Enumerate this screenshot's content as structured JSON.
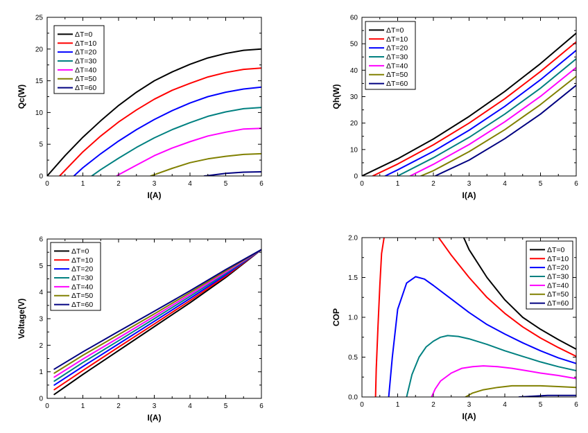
{
  "chart_data": [
    {
      "type": "line",
      "id": "qc",
      "xlabel": "I(A)",
      "ylabel": "Qc(W)",
      "xlim": [
        0,
        6
      ],
      "ylim": [
        0,
        25
      ],
      "xticks": [
        0,
        1,
        2,
        3,
        4,
        5,
        6
      ],
      "yticks": [
        0,
        5,
        10,
        15,
        20,
        25
      ],
      "legend_position": "top-left",
      "grid": false,
      "series": [
        {
          "name": "ΔT=0",
          "color": "#000000",
          "x": [
            0.0,
            0.5,
            1.0,
            1.5,
            2.0,
            2.5,
            3.0,
            3.5,
            4.0,
            4.5,
            5.0,
            5.5,
            6.0
          ],
          "y": [
            0.0,
            3.2,
            6.1,
            8.7,
            11.1,
            13.2,
            15.0,
            16.4,
            17.6,
            18.6,
            19.3,
            19.8,
            20.0
          ]
        },
        {
          "name": "ΔT=10",
          "color": "#ff0000",
          "x": [
            0.35,
            1.0,
            1.5,
            2.0,
            2.5,
            3.0,
            3.5,
            4.0,
            4.5,
            5.0,
            5.5,
            6.0
          ],
          "y": [
            0.0,
            3.8,
            6.3,
            8.5,
            10.4,
            12.1,
            13.5,
            14.6,
            15.6,
            16.3,
            16.8,
            17.0
          ]
        },
        {
          "name": "ΔT=20",
          "color": "#0000ff",
          "x": [
            0.75,
            1.0,
            1.5,
            2.0,
            2.5,
            3.0,
            3.5,
            4.0,
            4.5,
            5.0,
            5.5,
            6.0
          ],
          "y": [
            0.0,
            1.3,
            3.5,
            5.5,
            7.3,
            8.9,
            10.3,
            11.5,
            12.5,
            13.2,
            13.7,
            14.0
          ]
        },
        {
          "name": "ΔT=30",
          "color": "#008080",
          "x": [
            1.25,
            1.5,
            2.0,
            2.5,
            3.0,
            3.5,
            4.0,
            4.5,
            5.0,
            5.5,
            6.0
          ],
          "y": [
            0.0,
            1.0,
            2.8,
            4.5,
            6.0,
            7.3,
            8.4,
            9.4,
            10.1,
            10.6,
            10.8
          ]
        },
        {
          "name": "ΔT=40",
          "color": "#ff00ff",
          "x": [
            1.95,
            2.0,
            2.5,
            3.0,
            3.5,
            4.0,
            4.5,
            5.0,
            5.5,
            6.0
          ],
          "y": [
            0.0,
            0.2,
            1.7,
            3.2,
            4.4,
            5.4,
            6.3,
            6.9,
            7.4,
            7.5
          ]
        },
        {
          "name": "ΔT=50",
          "color": "#808000",
          "x": [
            2.9,
            3.0,
            3.5,
            4.0,
            4.5,
            5.0,
            5.5,
            6.0
          ],
          "y": [
            0.0,
            0.2,
            1.2,
            2.1,
            2.7,
            3.1,
            3.4,
            3.5
          ]
        },
        {
          "name": "ΔT=60",
          "color": "#000080",
          "x": [
            4.4,
            4.5,
            5.0,
            5.5,
            6.0
          ],
          "y": [
            0.0,
            0.05,
            0.4,
            0.6,
            0.65
          ]
        }
      ]
    },
    {
      "type": "line",
      "id": "qh",
      "xlabel": "I(A)",
      "ylabel": "Qh(W)",
      "xlim": [
        0,
        6
      ],
      "ylim": [
        0,
        60
      ],
      "xticks": [
        0,
        1,
        2,
        3,
        4,
        5,
        6
      ],
      "yticks": [
        0,
        10,
        20,
        30,
        40,
        50,
        60
      ],
      "legend_position": "top-left",
      "grid": false,
      "series": [
        {
          "name": "ΔT=0",
          "color": "#000000",
          "x": [
            0.0,
            1.0,
            2.0,
            3.0,
            4.0,
            5.0,
            6.0
          ],
          "y": [
            0.0,
            6.5,
            14.0,
            22.5,
            32.0,
            42.5,
            54.0
          ]
        },
        {
          "name": "ΔT=10",
          "color": "#ff0000",
          "x": [
            0.3,
            1.0,
            2.0,
            3.0,
            4.0,
            5.0,
            6.0
          ],
          "y": [
            0.0,
            4.5,
            11.8,
            20.0,
            29.2,
            39.5,
            50.7
          ]
        },
        {
          "name": "ΔT=20",
          "color": "#0000ff",
          "x": [
            0.65,
            1.0,
            2.0,
            3.0,
            4.0,
            5.0,
            6.0
          ],
          "y": [
            0.0,
            2.3,
            9.3,
            17.3,
            26.3,
            36.4,
            47.5
          ]
        },
        {
          "name": "ΔT=30",
          "color": "#008080",
          "x": [
            1.0,
            2.0,
            3.0,
            4.0,
            5.0,
            6.0
          ],
          "y": [
            0.0,
            6.9,
            14.6,
            23.4,
            33.2,
            44.3
          ]
        },
        {
          "name": "ΔT=40",
          "color": "#ff00ff",
          "x": [
            1.35,
            2.0,
            3.0,
            4.0,
            5.0,
            6.0
          ],
          "y": [
            0.0,
            4.4,
            11.9,
            20.5,
            30.1,
            41.0
          ]
        },
        {
          "name": "ΔT=50",
          "color": "#808000",
          "x": [
            1.65,
            2.0,
            3.0,
            4.0,
            5.0,
            6.0
          ],
          "y": [
            0.0,
            2.0,
            9.2,
            17.5,
            27.0,
            37.7
          ]
        },
        {
          "name": "ΔT=60",
          "color": "#000080",
          "x": [
            2.05,
            3.0,
            4.0,
            5.0,
            6.0
          ],
          "y": [
            0.0,
            6.0,
            14.1,
            23.4,
            34.3
          ]
        }
      ]
    },
    {
      "type": "line",
      "id": "voltage",
      "xlabel": "I(A)",
      "ylabel": "Voltage(V)",
      "xlim": [
        0,
        6
      ],
      "ylim": [
        0,
        6
      ],
      "xticks": [
        0,
        1,
        2,
        3,
        4,
        5,
        6
      ],
      "yticks": [
        0,
        1,
        2,
        3,
        4,
        5,
        6
      ],
      "legend_position": "top-left",
      "grid": false,
      "series": [
        {
          "name": "ΔT=0",
          "color": "#000000",
          "x": [
            0.2,
            1.0,
            2.0,
            3.0,
            4.0,
            5.0,
            6.0
          ],
          "y": [
            0.15,
            0.9,
            1.8,
            2.7,
            3.6,
            4.55,
            5.6
          ]
        },
        {
          "name": "ΔT=10",
          "color": "#ff0000",
          "x": [
            0.2,
            1.0,
            2.0,
            3.0,
            4.0,
            5.0,
            6.0
          ],
          "y": [
            0.33,
            1.05,
            1.93,
            2.8,
            3.68,
            4.6,
            5.6
          ]
        },
        {
          "name": "ΔT=20",
          "color": "#0000ff",
          "x": [
            0.2,
            1.0,
            2.0,
            3.0,
            4.0,
            5.0,
            6.0
          ],
          "y": [
            0.5,
            1.2,
            2.05,
            2.9,
            3.76,
            4.65,
            5.6
          ]
        },
        {
          "name": "ΔT=30",
          "color": "#008080",
          "x": [
            0.2,
            1.0,
            2.0,
            3.0,
            4.0,
            5.0,
            6.0
          ],
          "y": [
            0.65,
            1.35,
            2.17,
            3.0,
            3.84,
            4.7,
            5.6
          ]
        },
        {
          "name": "ΔT=40",
          "color": "#ff00ff",
          "x": [
            0.2,
            1.0,
            2.0,
            3.0,
            4.0,
            5.0,
            6.0
          ],
          "y": [
            0.8,
            1.48,
            2.28,
            3.09,
            3.91,
            4.75,
            5.6
          ]
        },
        {
          "name": "ΔT=50",
          "color": "#808000",
          "x": [
            0.2,
            1.0,
            2.0,
            3.0,
            4.0,
            5.0,
            6.0
          ],
          "y": [
            0.95,
            1.62,
            2.4,
            3.18,
            3.98,
            4.8,
            5.6
          ]
        },
        {
          "name": "ΔT=60",
          "color": "#000080",
          "x": [
            0.2,
            1.0,
            2.0,
            3.0,
            4.0,
            5.0,
            6.0
          ],
          "y": [
            1.1,
            1.75,
            2.52,
            3.28,
            4.05,
            4.85,
            5.6
          ]
        }
      ]
    },
    {
      "type": "line",
      "id": "cop",
      "xlabel": "I(A)",
      "ylabel": "COP",
      "xlim": [
        0,
        6
      ],
      "ylim": [
        0,
        2
      ],
      "xticks": [
        0,
        1,
        2,
        3,
        4,
        5,
        6
      ],
      "yticks": [
        0.0,
        0.5,
        1.0,
        1.5,
        2.0
      ],
      "legend_position": "top-right",
      "grid": false,
      "series": [
        {
          "name": "ΔT=0",
          "color": "#000000",
          "x": [
            2.85,
            3.0,
            3.5,
            4.0,
            4.5,
            5.0,
            5.5,
            6.0
          ],
          "y": [
            2.0,
            1.85,
            1.5,
            1.22,
            1.0,
            0.85,
            0.72,
            0.6
          ]
        },
        {
          "name": "ΔT=10",
          "color": "#ff0000",
          "x": [
            0.38,
            0.4,
            0.45,
            0.5,
            0.55,
            0.62
          ],
          "y": [
            0.0,
            0.35,
            0.9,
            1.4,
            1.8,
            2.0
          ]
        },
        {
          "name": "ΔT=10",
          "color": "#ff0000",
          "x": [
            2.15,
            2.5,
            3.0,
            3.5,
            4.0,
            4.5,
            5.0,
            5.5,
            6.0
          ],
          "y": [
            2.0,
            1.78,
            1.5,
            1.25,
            1.05,
            0.88,
            0.74,
            0.62,
            0.51
          ]
        },
        {
          "name": "ΔT=20",
          "color": "#0000ff",
          "x": [
            0.75,
            0.85,
            1.0,
            1.25,
            1.5,
            1.75,
            2.0,
            2.5,
            3.0,
            3.5,
            4.0,
            4.5,
            5.0,
            5.5,
            6.0
          ],
          "y": [
            0.0,
            0.5,
            1.1,
            1.43,
            1.51,
            1.48,
            1.4,
            1.23,
            1.06,
            0.91,
            0.79,
            0.68,
            0.58,
            0.49,
            0.42
          ]
        },
        {
          "name": "ΔT=30",
          "color": "#008080",
          "x": [
            1.25,
            1.4,
            1.6,
            1.8,
            2.0,
            2.2,
            2.4,
            2.7,
            3.0,
            3.5,
            4.0,
            4.5,
            5.0,
            5.5,
            6.0
          ],
          "y": [
            0.0,
            0.28,
            0.5,
            0.63,
            0.7,
            0.75,
            0.77,
            0.76,
            0.73,
            0.66,
            0.58,
            0.51,
            0.44,
            0.38,
            0.33
          ]
        },
        {
          "name": "ΔT=40",
          "color": "#ff00ff",
          "x": [
            1.95,
            2.05,
            2.2,
            2.5,
            2.8,
            3.1,
            3.4,
            3.8,
            4.2,
            4.6,
            5.0,
            5.5,
            6.0
          ],
          "y": [
            0.0,
            0.1,
            0.2,
            0.3,
            0.36,
            0.38,
            0.39,
            0.38,
            0.36,
            0.33,
            0.3,
            0.27,
            0.23
          ]
        },
        {
          "name": "ΔT=50",
          "color": "#808000",
          "x": [
            2.9,
            3.1,
            3.4,
            3.8,
            4.2,
            4.6,
            5.0,
            5.5,
            6.0
          ],
          "y": [
            0.0,
            0.05,
            0.09,
            0.12,
            0.14,
            0.14,
            0.14,
            0.13,
            0.12
          ]
        },
        {
          "name": "ΔT=60",
          "color": "#000080",
          "x": [
            4.4,
            4.8,
            5.2,
            5.6,
            6.0
          ],
          "y": [
            0.0,
            0.01,
            0.02,
            0.02,
            0.02
          ]
        }
      ]
    }
  ]
}
